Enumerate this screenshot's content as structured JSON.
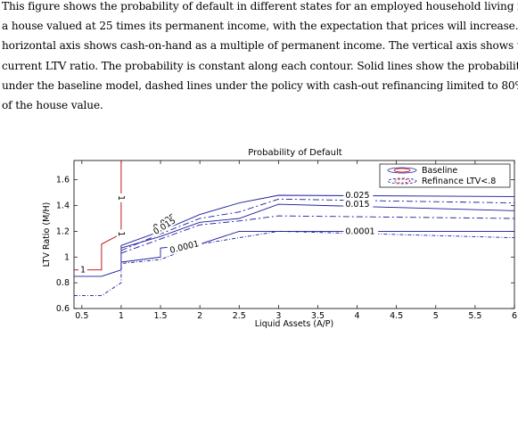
{
  "caption": [
    "This figure shows the probability of default in different states for an employed household living in",
    "a house valued at 25 times its permanent income, with the expectation that prices will increase. The",
    "horizontal axis shows cash-on-hand as a multiple of permanent income. The vertical axis shows the",
    "current LTV ratio.  The probability is constant along each contour. Solid lines show the probability",
    "under the baseline model, dashed lines under the policy with cash-out refinancing limited to 80%",
    "of the house value."
  ],
  "chart_data": {
    "type": "line",
    "title": "Probability of Default",
    "xlabel": "Liquid Assets (A/P)",
    "ylabel": "LTV Ratio (M/H)",
    "xlim": [
      0.4,
      6.0
    ],
    "ylim": [
      0.6,
      1.75
    ],
    "xticks": [
      "0.5",
      "1",
      "1.5",
      "2",
      "2.5",
      "3",
      "3.5",
      "4",
      "4.5",
      "5",
      "5.5",
      "6"
    ],
    "yticks": [
      "0.6",
      "0.8",
      "1",
      "1.2",
      "1.4",
      "1.6"
    ],
    "grid": false,
    "legend_position": "top-right",
    "legend": [
      "Baseline",
      "Refinance LTV<.8"
    ],
    "colors": {
      "baseline": "#1a1a9c",
      "refinance": "#1a1a9c",
      "red_line": "#c00000"
    },
    "series": [
      {
        "name": "Baseline",
        "contour": "0.025",
        "x": [
          0.4,
          0.75,
          0.75,
          1.0,
          1.0,
          1.5,
          2.0,
          2.5,
          3.0,
          6.0
        ],
        "y": [
          0.85,
          0.85,
          0.85,
          0.9,
          1.09,
          1.2,
          1.33,
          1.42,
          1.48,
          1.47
        ]
      },
      {
        "name": "Baseline",
        "contour": "0.015",
        "x": [
          1.0,
          1.5,
          2.0,
          2.5,
          3.0,
          6.0
        ],
        "y": [
          1.07,
          1.16,
          1.27,
          1.3,
          1.41,
          1.36
        ]
      },
      {
        "name": "Baseline",
        "contour": "0.0001",
        "x": [
          1.0,
          1.5,
          1.5,
          2.0,
          2.5,
          6.0
        ],
        "y": [
          0.96,
          1.0,
          1.07,
          1.1,
          1.2,
          1.2
        ]
      },
      {
        "name": "Refinance LTV<.8",
        "contour": "0.025",
        "x": [
          1.0,
          1.5,
          2.0,
          2.5,
          3.0,
          5.0,
          6.0
        ],
        "y": [
          1.05,
          1.18,
          1.3,
          1.35,
          1.45,
          1.43,
          1.42
        ]
      },
      {
        "name": "Refinance LTV<.8",
        "contour": "0.015",
        "x": [
          1.0,
          1.5,
          2.0,
          2.5,
          3.0,
          6.0
        ],
        "y": [
          1.03,
          1.14,
          1.25,
          1.28,
          1.32,
          1.3
        ]
      },
      {
        "name": "Refinance LTV<.8",
        "contour": "0.0001",
        "x": [
          0.4,
          0.75,
          1.0,
          1.0,
          1.5,
          2.0,
          2.5,
          3.0,
          6.0
        ],
        "y": [
          0.7,
          0.7,
          0.8,
          0.95,
          0.98,
          1.1,
          1.15,
          1.2,
          1.15
        ]
      }
    ],
    "contour_labels": [
      "0.025",
      "0.015",
      "0.0001",
      "0.025",
      "0.015",
      "0.0001",
      "1",
      "1",
      "1"
    ]
  }
}
